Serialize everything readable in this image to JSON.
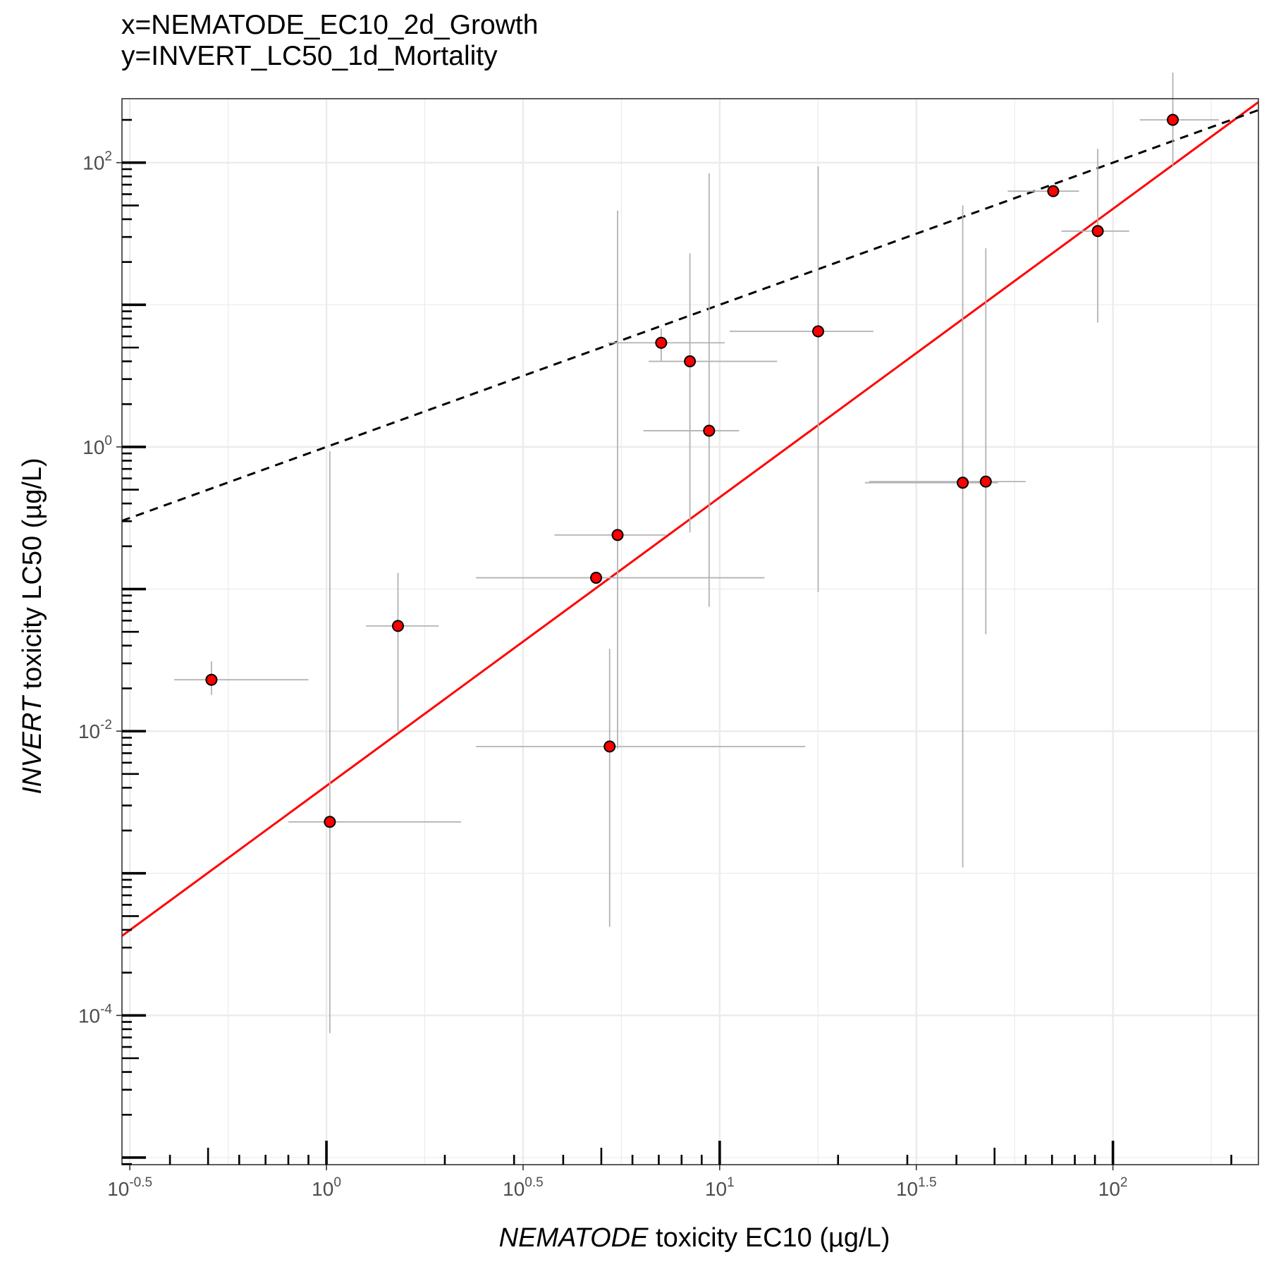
{
  "chart_data": {
    "type": "scatter",
    "title_lines": [
      "x=NEMATODE_EC10_2d_Growth",
      "y=INVERT_LC50_1d_Mortality"
    ],
    "xlabel": {
      "italic": "NEMATODE",
      "rest": " toxicity EC10 (µg/L)"
    },
    "ylabel": {
      "italic": "INVERT",
      "rest": " toxicity LC50 (µg/L)"
    },
    "x_scale": "log10",
    "y_scale": "log10",
    "xlim_log10": [
      -0.52,
      2.37
    ],
    "ylim_log10": [
      -5.05,
      2.45
    ],
    "x_ticks": [
      {
        "base": "10",
        "exp": "-0.5",
        "value": -0.5
      },
      {
        "base": "10",
        "exp": "0",
        "value": 0
      },
      {
        "base": "10",
        "exp": "0.5",
        "value": 0.5
      },
      {
        "base": "10",
        "exp": "1",
        "value": 1
      },
      {
        "base": "10",
        "exp": "1.5",
        "value": 1.5
      },
      {
        "base": "10",
        "exp": "2",
        "value": 2
      }
    ],
    "y_ticks": [
      {
        "base": "10",
        "exp": "2",
        "value": 2
      },
      {
        "base": "10",
        "exp": "0",
        "value": 0
      },
      {
        "base": "10",
        "exp": "-2",
        "value": -2
      },
      {
        "base": "10",
        "exp": "-4",
        "value": -4
      }
    ],
    "grid": true,
    "point_color": "#ff0000",
    "points": [
      {
        "x": 0.51,
        "y": 0.023,
        "x_lo": 0.41,
        "x_hi": 0.9,
        "y_lo": 0.018,
        "y_hi": 0.031
      },
      {
        "x": 1.02,
        "y": 0.0023,
        "x_lo": 0.8,
        "x_hi": 2.2,
        "y_lo": 7.5e-05,
        "y_hi": 0.93
      },
      {
        "x": 1.52,
        "y": 0.055,
        "x_lo": 1.26,
        "x_hi": 1.93,
        "y_lo": 0.01,
        "y_hi": 0.13
      },
      {
        "x": 4.85,
        "y": 0.12,
        "x_lo": 2.4,
        "x_hi": 13,
        "y_lo": 0.12,
        "y_hi": 0.12
      },
      {
        "x": 5.25,
        "y": 0.0078,
        "x_lo": 2.4,
        "x_hi": 16.5,
        "y_lo": 0.00042,
        "y_hi": 0.038
      },
      {
        "x": 5.5,
        "y": 0.24,
        "x_lo": 3.8,
        "x_hi": 7.3,
        "y_lo": 0.0075,
        "y_hi": 46
      },
      {
        "x": 7.1,
        "y": 5.4,
        "x_lo": 5.2,
        "x_hi": 10.3,
        "y_lo": 4.0,
        "y_hi": 6.8
      },
      {
        "x": 8.4,
        "y": 4.0,
        "x_lo": 6.6,
        "x_hi": 14.0,
        "y_lo": 0.25,
        "y_hi": 23
      },
      {
        "x": 9.4,
        "y": 1.3,
        "x_lo": 6.4,
        "x_hi": 11.2,
        "y_lo": 0.075,
        "y_hi": 84
      },
      {
        "x": 17.8,
        "y": 6.5,
        "x_lo": 10.6,
        "x_hi": 24.6,
        "y_lo": 0.095,
        "y_hi": 94
      },
      {
        "x": 41.5,
        "y": 0.56,
        "x_lo": 23.4,
        "x_hi": 51,
        "y_lo": 0.0011,
        "y_hi": 50
      },
      {
        "x": 47.5,
        "y": 0.57,
        "x_lo": 24.0,
        "x_hi": 60,
        "y_lo": 0.048,
        "y_hi": 25
      },
      {
        "x": 70.5,
        "y": 63,
        "x_lo": 54,
        "x_hi": 82,
        "y_lo": 63,
        "y_hi": 63
      },
      {
        "x": 91.5,
        "y": 33,
        "x_lo": 74,
        "x_hi": 110,
        "y_lo": 7.5,
        "y_hi": 125
      },
      {
        "x": 142,
        "y": 200,
        "x_lo": 117,
        "x_hi": 186,
        "y_lo": 95,
        "y_hi": 430
      }
    ],
    "fit_line": {
      "color": "#ff0000",
      "style": "solid",
      "slope": 2.03,
      "intercept_log10": -2.385
    },
    "reference_line": {
      "color": "#000000",
      "style": "dashed",
      "slope": 1,
      "intercept_log10": 0
    }
  }
}
